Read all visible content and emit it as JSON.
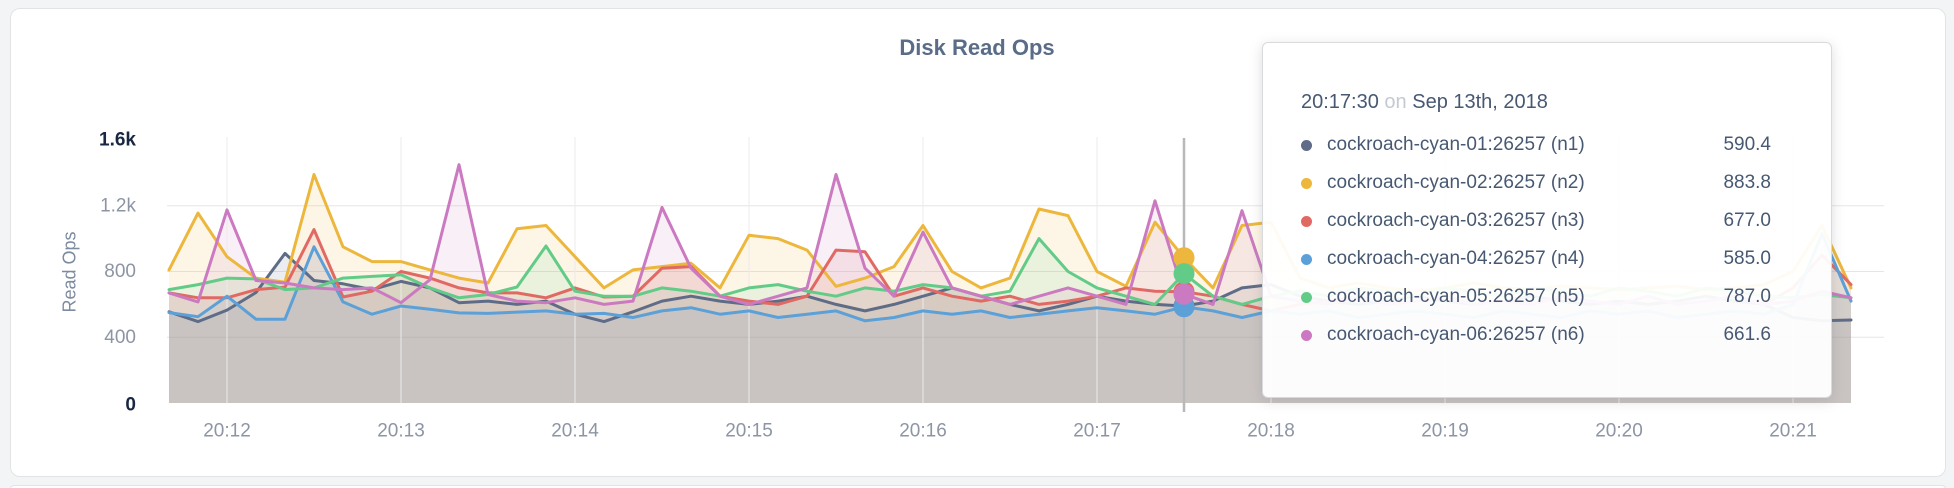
{
  "window": {
    "background": "#f3f4f5",
    "card_background": "#ffffff",
    "card_border": "#e2e3e5"
  },
  "chart_data": {
    "type": "line",
    "title": "Disk Read Ops",
    "xlabel": "",
    "ylabel": "Read Ops",
    "ylim": [
      0,
      1600
    ],
    "grid": true,
    "legend_position": "none",
    "y_tick_values": [
      0,
      400,
      800,
      1200,
      1600
    ],
    "y_tick_labels": [
      "0",
      "400",
      "800",
      "1.2k",
      "1.6k"
    ],
    "x_tick_labels": [
      "20:12",
      "20:13",
      "20:14",
      "20:15",
      "20:16",
      "20:17",
      "20:18",
      "20:19",
      "20:20",
      "20:21"
    ],
    "x_start": "20:11:40",
    "x_end": "20:21:20",
    "sample_interval_sec": 10,
    "series": [
      {
        "name": "cockroach-cyan-01:26257 (n1)",
        "color": "#5F6C87",
        "values": [
          555,
          495,
          565,
          672,
          910,
          745,
          725,
          690,
          740,
          700,
          610,
          620,
          600,
          620,
          540,
          495,
          555,
          620,
          650,
          620,
          600,
          620,
          650,
          600,
          560,
          600,
          650,
          700,
          650,
          600,
          560,
          600,
          650,
          620,
          600,
          590.4,
          620,
          700,
          720,
          650,
          620,
          600,
          620,
          650,
          620,
          600,
          620,
          650,
          620,
          600,
          620,
          600,
          620,
          650,
          620,
          600,
          520,
          500,
          505
        ]
      },
      {
        "name": "cockroach-cyan-02:26257 (n2)",
        "color": "#ECB73C",
        "values": [
          810,
          1155,
          890,
          760,
          735,
          1390,
          950,
          860,
          860,
          810,
          760,
          730,
          1060,
          1080,
          890,
          700,
          810,
          830,
          850,
          700,
          1020,
          1000,
          930,
          710,
          760,
          830,
          1080,
          800,
          700,
          760,
          1180,
          1140,
          800,
          710,
          1100,
          883.8,
          700,
          1080,
          1100,
          760,
          700,
          730,
          700,
          680,
          700,
          730,
          700,
          690,
          710,
          700,
          690,
          700,
          710,
          690,
          700,
          720,
          800,
          1080,
          700
        ]
      },
      {
        "name": "cockroach-cyan-03:26257 (n3)",
        "color": "#E06A63",
        "values": [
          670,
          640,
          640,
          690,
          705,
          1055,
          645,
          680,
          800,
          760,
          700,
          670,
          670,
          640,
          700,
          645,
          650,
          820,
          830,
          650,
          620,
          600,
          650,
          930,
          920,
          650,
          700,
          650,
          620,
          650,
          600,
          620,
          650,
          700,
          680,
          677,
          650,
          600,
          560,
          600,
          620,
          650,
          600,
          620,
          650,
          600,
          620,
          600,
          650,
          620,
          600,
          650,
          600,
          620,
          650,
          600,
          700,
          900,
          720
        ]
      },
      {
        "name": "cockroach-cyan-04:26257 (n4)",
        "color": "#5CA0D8",
        "values": [
          550,
          525,
          650,
          510,
          510,
          950,
          615,
          540,
          590,
          570,
          548,
          545,
          553,
          560,
          540,
          545,
          520,
          560,
          580,
          540,
          560,
          520,
          540,
          560,
          500,
          520,
          560,
          540,
          560,
          520,
          540,
          560,
          580,
          560,
          540,
          585,
          560,
          520,
          560,
          540,
          560,
          520,
          540,
          560,
          540,
          520,
          560,
          540,
          520,
          560,
          540,
          560,
          520,
          540,
          560,
          540,
          600,
          1030,
          620
        ]
      },
      {
        "name": "cockroach-cyan-05:26257 (n5)",
        "color": "#63CB88",
        "values": [
          690,
          720,
          760,
          755,
          690,
          700,
          760,
          770,
          780,
          700,
          640,
          660,
          706,
          955,
          680,
          650,
          650,
          700,
          680,
          650,
          700,
          720,
          680,
          650,
          700,
          680,
          720,
          700,
          650,
          680,
          1000,
          800,
          700,
          650,
          600,
          787,
          650,
          600,
          650,
          680,
          650,
          700,
          680,
          650,
          700,
          680,
          650,
          700,
          680,
          650,
          700,
          680,
          650,
          700,
          680,
          650,
          640,
          660,
          640
        ]
      },
      {
        "name": "cockroach-cyan-06:26257 (n6)",
        "color": "#CB7AC1",
        "values": [
          670,
          615,
          1175,
          745,
          730,
          700,
          690,
          700,
          610,
          750,
          1450,
          660,
          620,
          610,
          640,
          600,
          620,
          1190,
          820,
          650,
          600,
          650,
          700,
          1390,
          820,
          650,
          1040,
          700,
          650,
          600,
          650,
          700,
          650,
          600,
          1230,
          661.6,
          600,
          1170,
          650,
          620,
          600,
          650,
          600,
          620,
          650,
          600,
          620,
          600,
          650,
          620,
          600,
          650,
          600,
          620,
          650,
          600,
          620,
          680,
          640
        ]
      }
    ]
  },
  "hover": {
    "index": 35,
    "guideline_color": "#b8b8b8"
  },
  "tooltip": {
    "time": "20:17:30",
    "connector": "on",
    "date": "Sep 13th, 2018",
    "rows": [
      {
        "label": "cockroach-cyan-01:26257 (n1)",
        "value": "590.4",
        "color": "#5F6C87"
      },
      {
        "label": "cockroach-cyan-02:26257 (n2)",
        "value": "883.8",
        "color": "#ECB73C"
      },
      {
        "label": "cockroach-cyan-03:26257 (n3)",
        "value": "677.0",
        "color": "#E06A63"
      },
      {
        "label": "cockroach-cyan-04:26257 (n4)",
        "value": "585.0",
        "color": "#5CA0D8"
      },
      {
        "label": "cockroach-cyan-05:26257 (n5)",
        "value": "787.0",
        "color": "#63CB88"
      },
      {
        "label": "cockroach-cyan-06:26257 (n6)",
        "value": "661.6",
        "color": "#CB7AC1"
      }
    ]
  }
}
